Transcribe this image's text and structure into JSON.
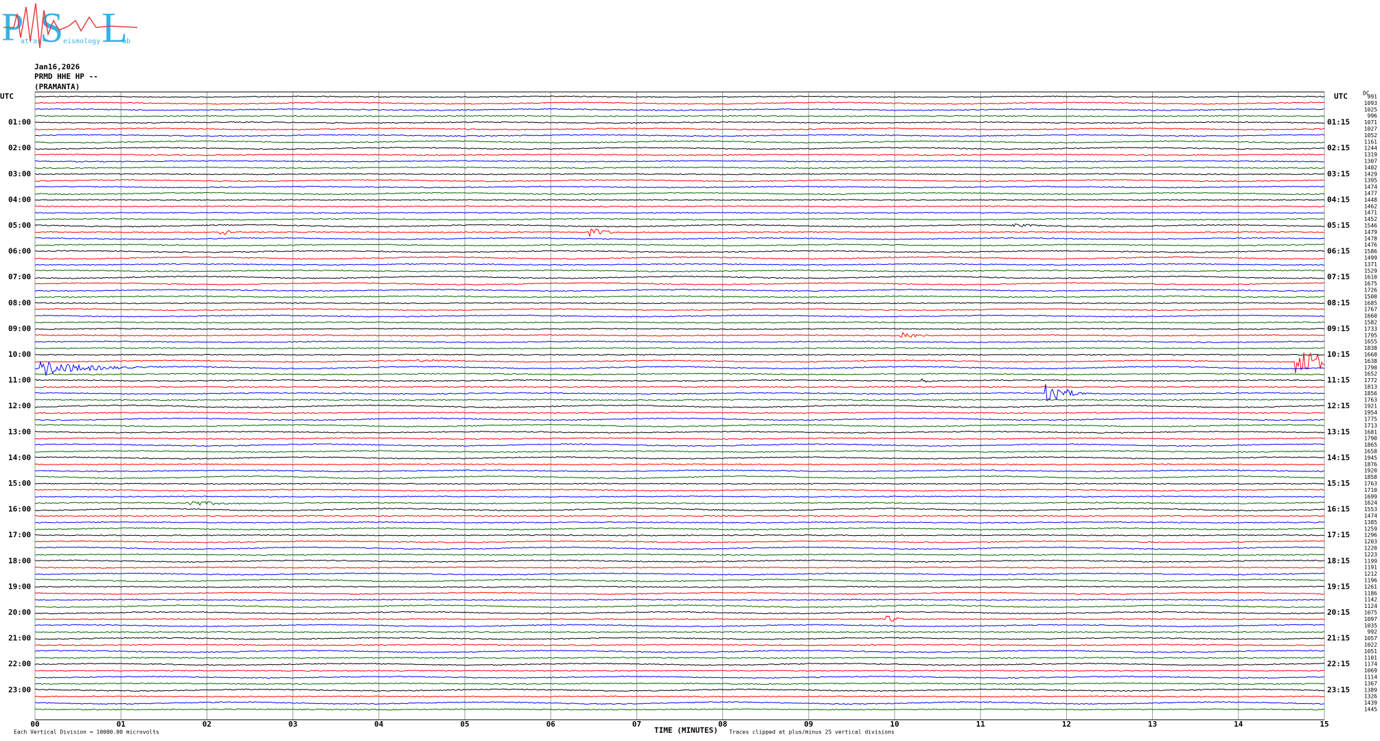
{
  "logo": {
    "letters": [
      "P",
      "S",
      "L"
    ],
    "words": [
      "atras",
      "eismology",
      "ab"
    ]
  },
  "header": {
    "date": "Jan16,2026",
    "channel": "PRMD HHE HP --",
    "station": "(PRAMANTA)"
  },
  "left_axis": {
    "title": "UTC",
    "labels": [
      "01:00",
      "02:00",
      "03:00",
      "04:00",
      "05:00",
      "06:00",
      "07:00",
      "08:00",
      "09:00",
      "10:00",
      "11:00",
      "12:00",
      "13:00",
      "14:00",
      "15:00",
      "16:00",
      "17:00",
      "18:00",
      "19:00",
      "20:00",
      "21:00",
      "22:00",
      "23:00"
    ]
  },
  "right_axis": {
    "title": "UTC",
    "labels": [
      "01:15",
      "02:15",
      "03:15",
      "04:15",
      "05:15",
      "06:15",
      "07:15",
      "08:15",
      "09:15",
      "10:15",
      "11:15",
      "12:15",
      "13:15",
      "14:15",
      "15:15",
      "16:15",
      "17:15",
      "18:15",
      "19:15",
      "20:15",
      "21:15",
      "22:15",
      "23:15"
    ]
  },
  "dc_column": {
    "title": "DC",
    "values": [
      "991",
      "1093",
      "1025",
      "996",
      "1071",
      "1027",
      "1052",
      "1161",
      "1244",
      "1319",
      "1307",
      "1402",
      "1429",
      "1395",
      "1474",
      "1477",
      "1448",
      "1462",
      "1471",
      "1452",
      "1546",
      "1479",
      "1478",
      "1476",
      "1586",
      "1499",
      "1371",
      "1529",
      "1610",
      "1675",
      "1726",
      "1500",
      "1685",
      "1767",
      "1660",
      "1582",
      "1733",
      "1795",
      "1655",
      "1838",
      "1668",
      "1638",
      "1790",
      "1652",
      "1772",
      "1813",
      "1856",
      "1763",
      "1921",
      "1954",
      "1775",
      "1713",
      "1681",
      "1790",
      "1865",
      "1658",
      "1945",
      "1876",
      "1920",
      "1858",
      "1763",
      "1710",
      "1699",
      "1624",
      "1553",
      "1474",
      "1385",
      "1259",
      "1296",
      "1203",
      "1220",
      "1223",
      "1199",
      "1191",
      "1212",
      "1196",
      "1261",
      "1186",
      "1142",
      "1124",
      "1075",
      "1097",
      "1035",
      "992",
      "1057",
      "1022",
      "1051",
      "1101",
      "1174",
      "1069",
      "1114",
      "1367",
      "1389",
      "1326",
      "1439",
      "1445"
    ]
  },
  "x_axis": {
    "title": "TIME (MINUTES)",
    "ticks": [
      "00",
      "01",
      "02",
      "03",
      "04",
      "05",
      "06",
      "07",
      "08",
      "09",
      "10",
      "11",
      "12",
      "13",
      "14",
      "15"
    ]
  },
  "footer": {
    "scale": "Each Vertical Division = 10000.00 microvolts",
    "clip_note": "Traces clipped at plus/minus 25 vertical divisions"
  }
}
